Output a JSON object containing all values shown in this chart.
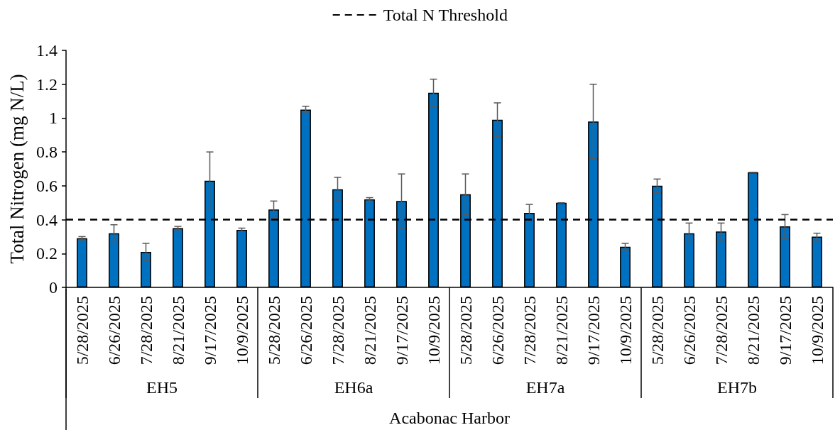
{
  "chart_data": {
    "type": "bar",
    "ylabel": "Total Nitrogen (mg N/L)",
    "xlabel": "Acabonac Harbor",
    "annotations": [
      "EH5",
      "EH6a",
      "EH7a",
      "EH7b"
    ],
    "categories": [
      "5/28/2025",
      "6/26/2025",
      "7/28/2025",
      "8/21/2025",
      "9/17/2025",
      "10/9/2025",
      "5/28/2025",
      "6/26/2025",
      "7/28/2025",
      "8/21/2025",
      "9/17/2025",
      "10/9/2025",
      "5/28/2025",
      "6/26/2025",
      "7/28/2025",
      "8/21/2025",
      "9/17/2025",
      "10/9/2025",
      "5/28/2025",
      "6/26/2025",
      "7/28/2025",
      "8/21/2025",
      "9/17/2025",
      "10/9/2025"
    ],
    "values": [
      0.29,
      0.32,
      0.21,
      0.35,
      0.63,
      0.34,
      0.46,
      1.05,
      0.58,
      0.52,
      0.51,
      1.15,
      0.55,
      0.99,
      0.44,
      0.5,
      0.98,
      0.24,
      0.6,
      0.32,
      0.33,
      0.68,
      0.36,
      0.3
    ],
    "errors": [
      0.01,
      0.05,
      0.05,
      0.01,
      0.17,
      0.01,
      0.05,
      0.02,
      0.07,
      0.01,
      0.16,
      0.08,
      0.12,
      0.1,
      0.05,
      0,
      0.22,
      0.02,
      0.04,
      0.06,
      0.05,
      0,
      0.07,
      0.02
    ],
    "color": "#0070c0",
    "ylim": [
      0,
      1.4
    ],
    "yticks": [
      0,
      0.2,
      0.4,
      0.6,
      0.8,
      1,
      1.2,
      1.4
    ],
    "ref_lines": [
      {
        "axis": "y",
        "value": 0.4,
        "label": "Total N Threshold",
        "color": "#000000",
        "line_style": "dashed"
      }
    ],
    "legend": "top"
  }
}
